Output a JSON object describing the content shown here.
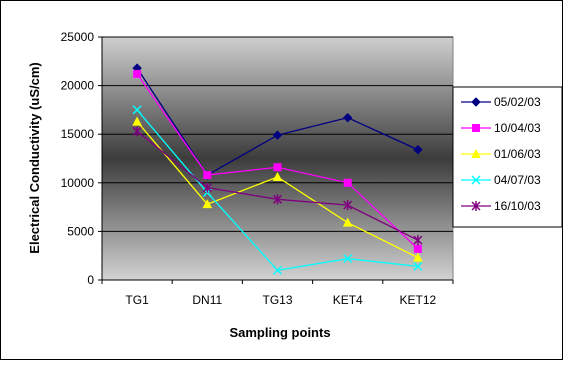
{
  "chart_data": {
    "type": "line",
    "title": "",
    "xlabel": "Sampling points",
    "ylabel": "Electrical Conductivity (uS/cm)",
    "categories": [
      "TG1",
      "DN11",
      "TG13",
      "KET4",
      "KET12"
    ],
    "ylim": [
      0,
      25000
    ],
    "yticks": [
      0,
      5000,
      10000,
      15000,
      20000,
      25000
    ],
    "grid": true,
    "legend_position": "right",
    "series": [
      {
        "name": "05/02/03",
        "color": "#000080",
        "marker": "diamond",
        "values": [
          21800,
          10800,
          14900,
          16700,
          13400
        ]
      },
      {
        "name": "10/04/03",
        "color": "#ff00ff",
        "marker": "square",
        "values": [
          21200,
          10800,
          11600,
          10000,
          3200
        ]
      },
      {
        "name": "01/06/03",
        "color": "#ffff00",
        "marker": "triangle",
        "values": [
          16300,
          7800,
          10600,
          5900,
          2300
        ]
      },
      {
        "name": "04/07/03",
        "color": "#00ffff",
        "marker": "x",
        "values": [
          17500,
          9000,
          1000,
          2200,
          1400
        ]
      },
      {
        "name": "16/10/03",
        "color": "#800080",
        "marker": "star",
        "values": [
          15300,
          9500,
          8300,
          7700,
          4100
        ]
      }
    ]
  }
}
